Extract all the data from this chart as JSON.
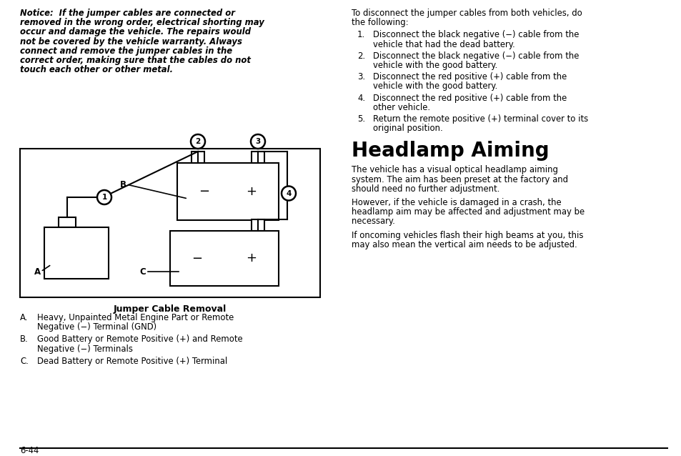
{
  "bg_color": "#ffffff",
  "page_number": "6-44",
  "notice_lines": [
    "Notice:  If the jumper cables are connected or",
    "removed in the wrong order, electrical shorting may",
    "occur and damage the vehicle. The repairs would",
    "not be covered by the vehicle warranty. Always",
    "connect and remove the jumper cables in the",
    "correct order, making sure that the cables do not",
    "touch each other or other metal."
  ],
  "intro_lines": [
    "To disconnect the jumper cables from both vehicles, do",
    "the following:"
  ],
  "steps": [
    [
      "Disconnect the black negative (−) cable from the",
      "vehicle that had the dead battery."
    ],
    [
      "Disconnect the black negative (−) cable from the",
      "vehicle with the good battery."
    ],
    [
      "Disconnect the red positive (+) cable from the",
      "vehicle with the good battery."
    ],
    [
      "Disconnect the red positive (+) cable from the",
      "other vehicle."
    ],
    [
      "Return the remote positive (+) terminal cover to its",
      "original position."
    ]
  ],
  "section_title": "Headlamp Aiming",
  "para1_lines": [
    "The vehicle has a visual optical headlamp aiming",
    "system. The aim has been preset at the factory and",
    "should need no further adjustment."
  ],
  "para2_lines": [
    "However, if the vehicle is damaged in a crash, the",
    "headlamp aim may be affected and adjustment may be",
    "necessary."
  ],
  "para3_lines": [
    "If oncoming vehicles flash their high beams at you, this",
    "may also mean the vertical aim needs to be adjusted."
  ],
  "diagram_caption": "Jumper Cable Removal",
  "legend": [
    [
      "A.",
      "Heavy, Unpainted Metal Engine Part or Remote",
      "Negative (−) Terminal (GND)"
    ],
    [
      "B.",
      "Good Battery or Remote Positive (+) and Remote",
      "Negative (−) Terminals"
    ],
    [
      "C.",
      "Dead Battery or Remote Positive (+) Terminal"
    ]
  ]
}
